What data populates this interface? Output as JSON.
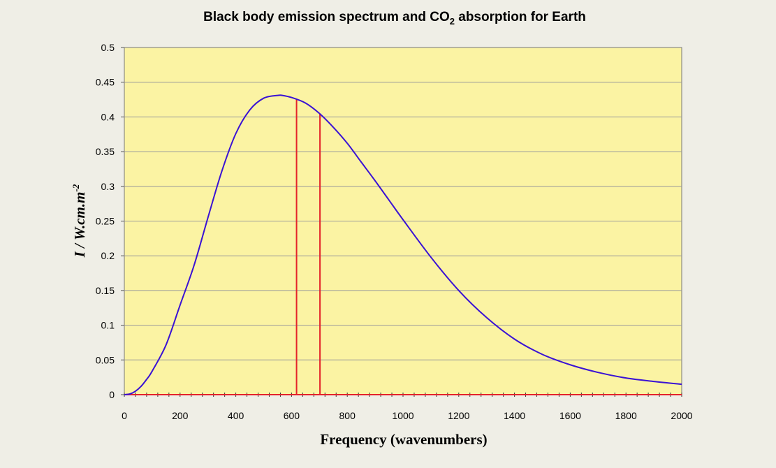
{
  "chart_data": {
    "type": "line",
    "title": {
      "prefix": "Black body emission spectrum and CO",
      "subscript": "2",
      "suffix": " absorption for Earth"
    },
    "xlabel": "Frequency (wavenumbers)",
    "ylabel": {
      "main": "I / W.cm.m",
      "superscript": "-2"
    },
    "xlim": [
      0,
      2000
    ],
    "ylim": [
      0,
      0.5
    ],
    "x_ticks": [
      "0",
      "200",
      "400",
      "600",
      "800",
      "1000",
      "1200",
      "1400",
      "1600",
      "1800",
      "2000"
    ],
    "y_ticks": [
      "0",
      "0.05",
      "0.1",
      "0.15",
      "0.2",
      "0.25",
      "0.3",
      "0.35",
      "0.4",
      "0.45",
      "0.5"
    ],
    "grid": true,
    "series": [
      {
        "color": "#3a12d4",
        "x": [
          0,
          20,
          40,
          60,
          80,
          100,
          150,
          200,
          250,
          300,
          350,
          400,
          450,
          500,
          550,
          567,
          600,
          650,
          700,
          750,
          800,
          850,
          900,
          950,
          1000,
          1100,
          1200,
          1300,
          1400,
          1500,
          1600,
          1700,
          1800,
          1900,
          2000
        ],
        "y": [
          0,
          0.001,
          0.005,
          0.012,
          0.022,
          0.034,
          0.072,
          0.129,
          0.186,
          0.255,
          0.322,
          0.376,
          0.41,
          0.427,
          0.431,
          0.431,
          0.428,
          0.42,
          0.405,
          0.385,
          0.362,
          0.335,
          0.308,
          0.28,
          0.252,
          0.198,
          0.15,
          0.111,
          0.08,
          0.058,
          0.043,
          0.032,
          0.024,
          0.019,
          0.015
        ]
      }
    ],
    "absorption_band": {
      "color": "#e4232a",
      "x_start": 618,
      "x_end": 702
    }
  }
}
